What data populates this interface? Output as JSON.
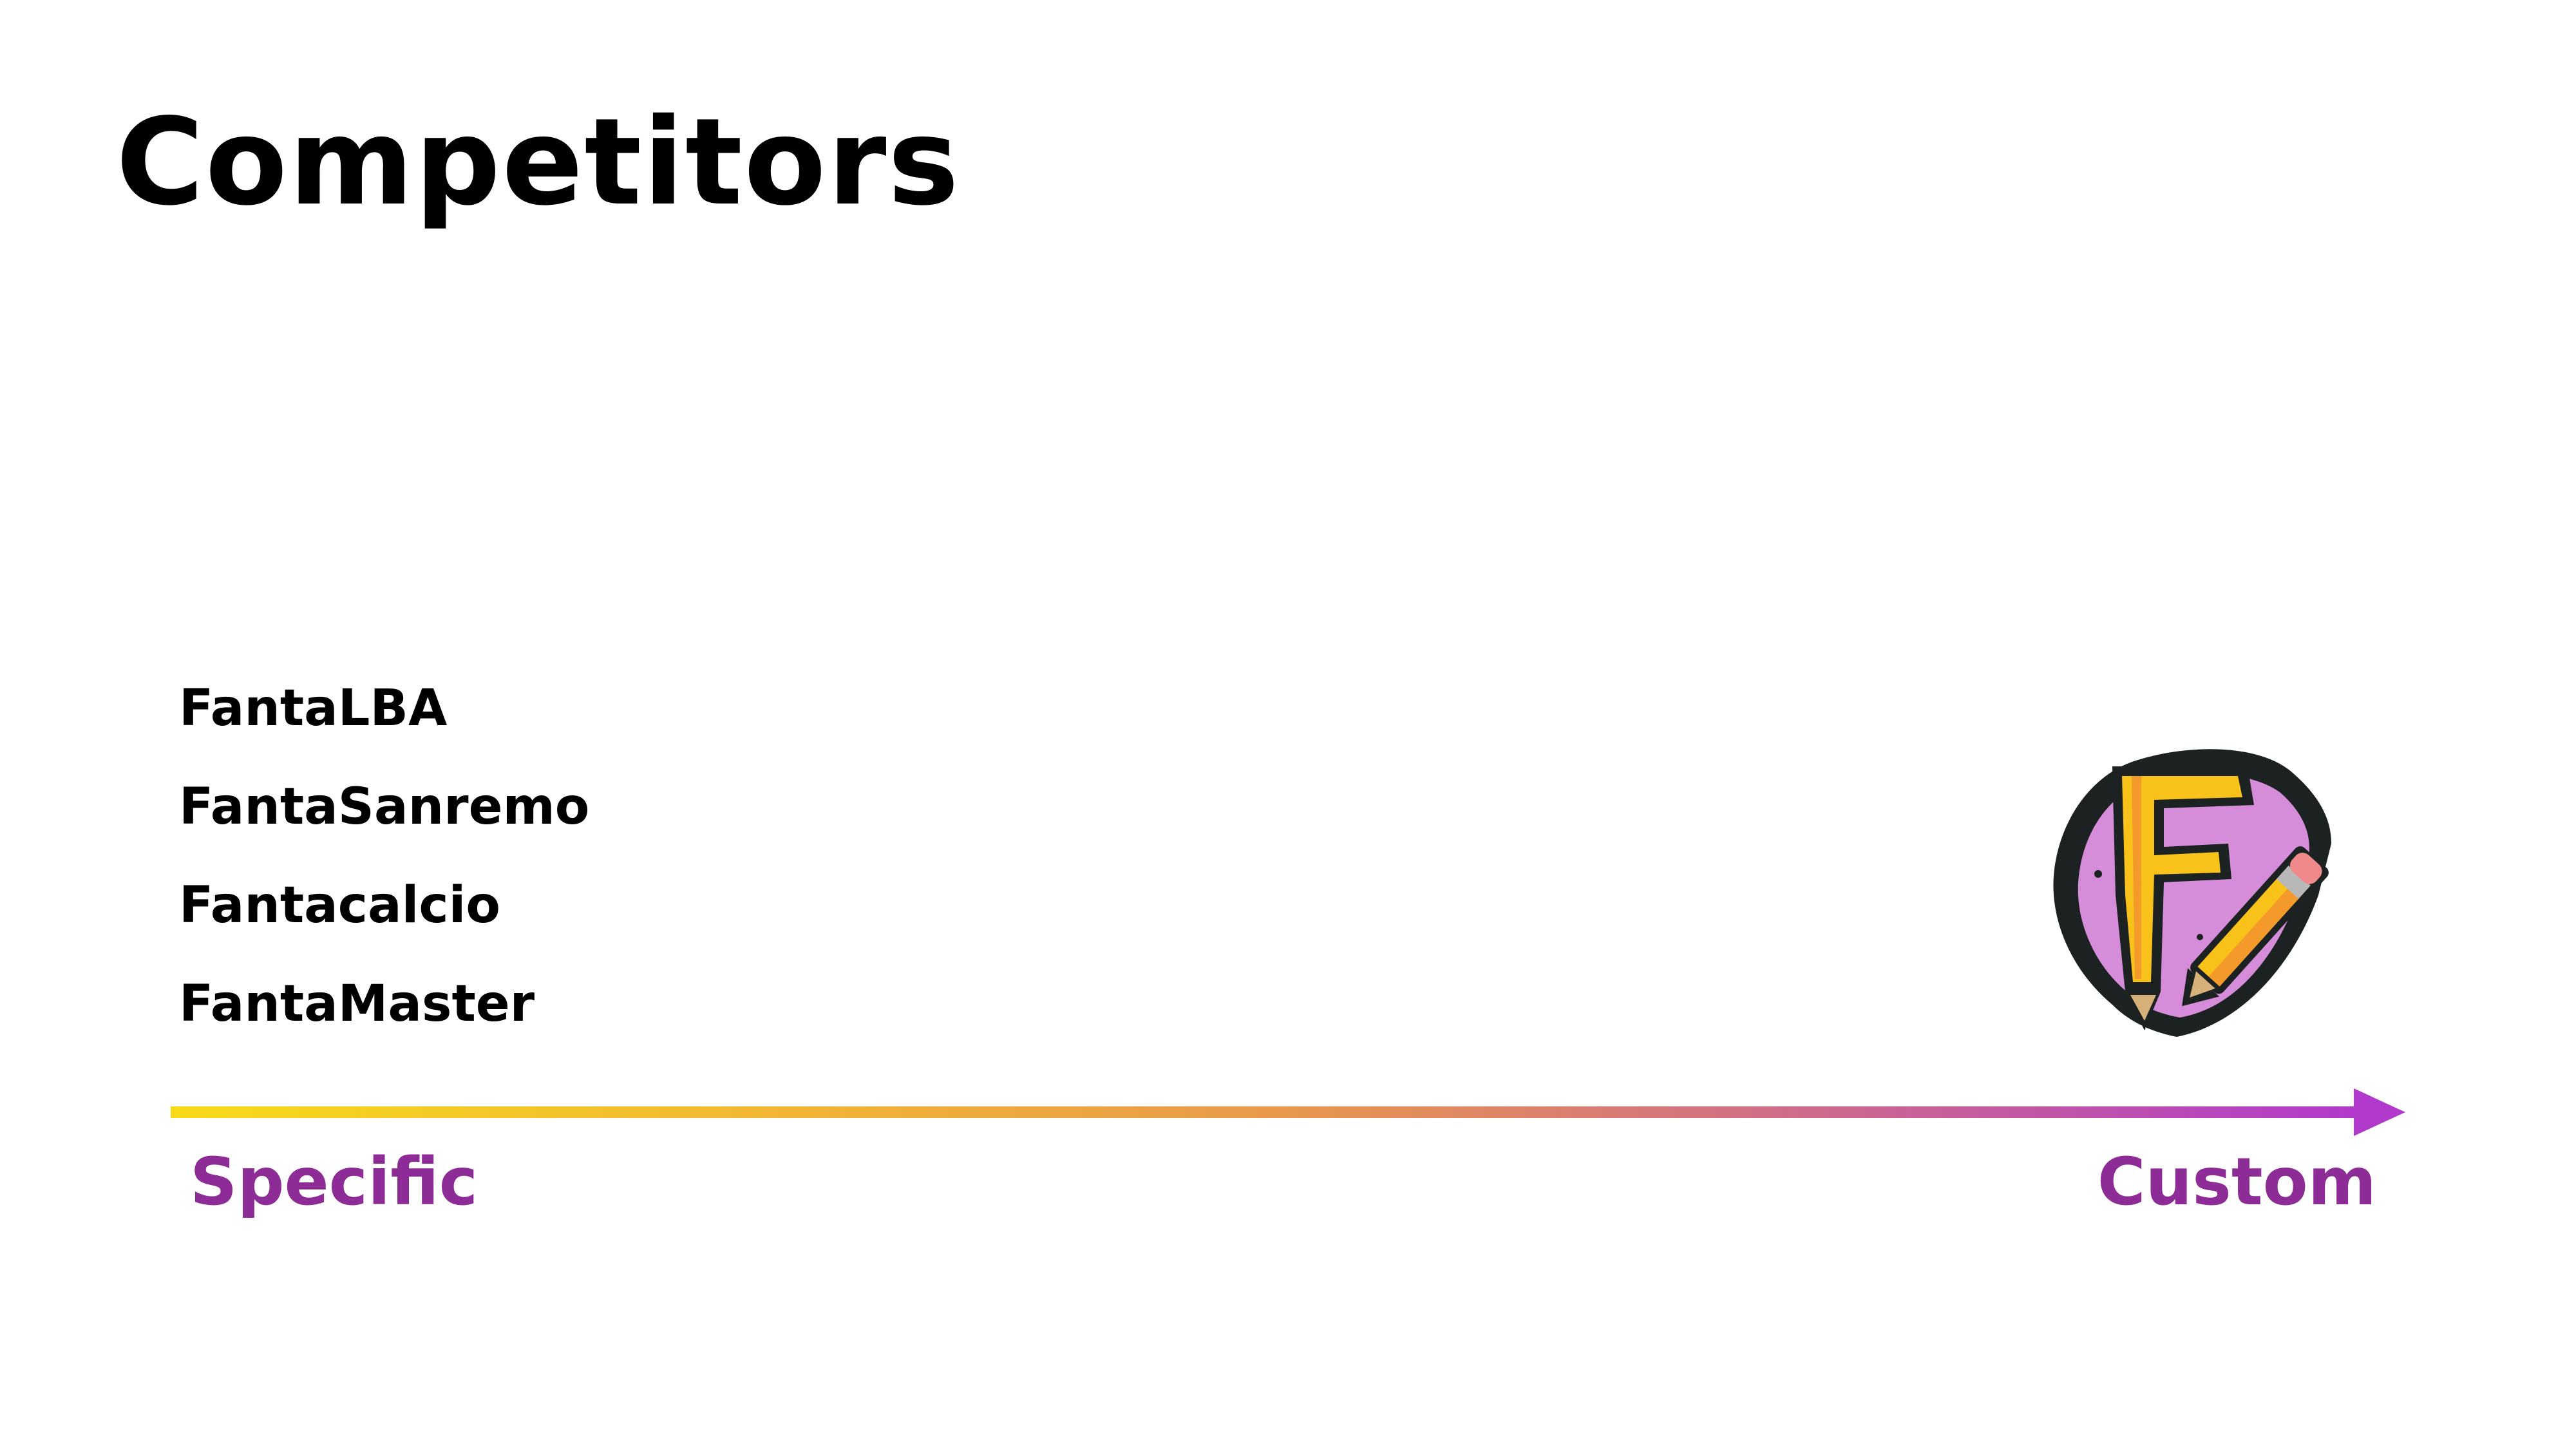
{
  "slide": {
    "title": "Competitors"
  },
  "competitors": [
    "FantaLBA",
    "FantaSanremo",
    "Fantacalcio",
    "FantaMaster"
  ],
  "axis": {
    "start_label": "Specific",
    "end_label": "Custom",
    "label_color": "#8E2C97",
    "gradient_start": "#F8DA18",
    "gradient_mid": "#E89A4A",
    "gradient_end": "#B13ACD"
  },
  "logo": {
    "icon": "letter-f-with-pencil-icon",
    "letter": "F",
    "circle_color": "#D58DDA",
    "letter_color": "#F8C21B"
  }
}
